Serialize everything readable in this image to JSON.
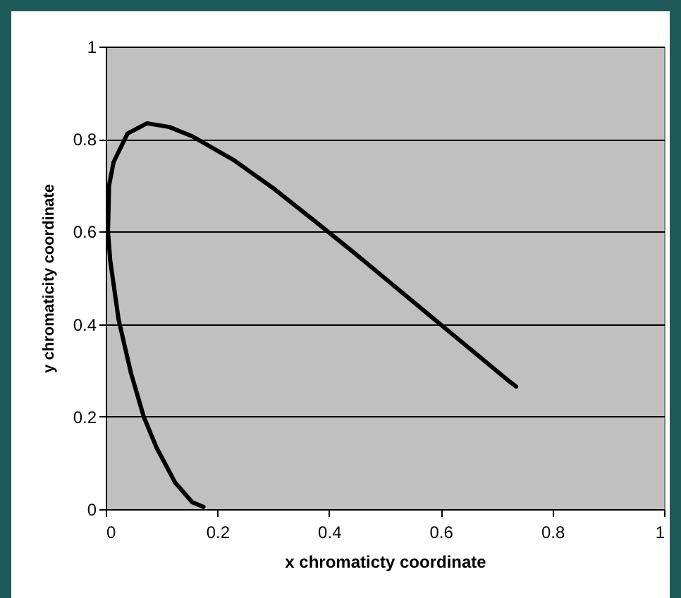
{
  "chart_data": {
    "type": "line",
    "xlabel": "x chromaticty coordinate",
    "ylabel": "y chromaticity coordinate",
    "x": [
      0.175,
      0.155,
      0.144,
      0.124,
      0.091,
      0.068,
      0.045,
      0.023,
      0.008,
      0.004,
      0.006,
      0.014,
      0.039,
      0.074,
      0.114,
      0.155,
      0.23,
      0.302,
      0.373,
      0.444,
      0.512,
      0.575,
      0.627,
      0.691,
      0.719,
      0.735
    ],
    "series": [
      {
        "color": "#000000",
        "values": [
          0.005,
          0.015,
          0.03,
          0.058,
          0.133,
          0.2,
          0.295,
          0.41,
          0.538,
          0.6,
          0.7,
          0.75,
          0.812,
          0.834,
          0.826,
          0.806,
          0.754,
          0.692,
          0.624,
          0.555,
          0.487,
          0.424,
          0.372,
          0.308,
          0.28,
          0.265
        ]
      }
    ],
    "xlim": [
      0,
      1
    ],
    "ylim": [
      0,
      1
    ],
    "xticks": [
      0,
      0.2,
      0.4,
      0.6,
      0.8,
      1
    ],
    "yticks": [
      0,
      0.2,
      0.4,
      0.6,
      0.8,
      1
    ],
    "grid": "y",
    "line_style": "solid",
    "marker": "none"
  }
}
